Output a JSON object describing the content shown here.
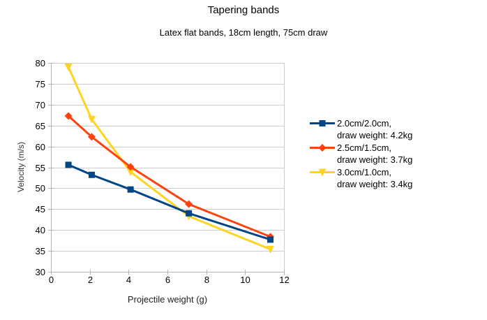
{
  "header": {
    "title": "Tapering bands",
    "subtitle": "Latex flat bands, 18cm length, 75cm draw"
  },
  "chart_data": {
    "type": "line",
    "title": "Tapering bands",
    "subtitle": "Latex flat bands, 18cm length, 75cm draw",
    "xlabel": "Projectile weight (g)",
    "ylabel": "Velocity (m/s)",
    "xlim": [
      0,
      12
    ],
    "ylim": [
      30,
      80
    ],
    "x_ticks": [
      0,
      2,
      4,
      6,
      8,
      10,
      12
    ],
    "y_ticks": [
      30,
      35,
      40,
      45,
      50,
      55,
      60,
      65,
      70,
      75,
      80
    ],
    "grid": "horizontal",
    "legend_position": "right",
    "x": [
      0.9,
      2.1,
      4.1,
      7.1,
      11.3
    ],
    "series": [
      {
        "label_line1": "2.0cm/2.0cm,",
        "label_line2": "draw weight: 4.2kg",
        "color": "#004586",
        "marker": "square",
        "values": [
          55.6,
          53.2,
          49.7,
          44.0,
          37.7
        ]
      },
      {
        "label_line1": "2.5cm/1.5cm,",
        "label_line2": "draw weight: 3.7kg",
        "color": "#FF420E",
        "marker": "diamond",
        "values": [
          67.3,
          62.3,
          55.1,
          46.2,
          38.4
        ]
      },
      {
        "label_line1": "3.0cm/1.0cm,",
        "label_line2": "draw weight: 3.4kg",
        "color": "#FFD320",
        "marker": "triangle-down",
        "values": [
          79.0,
          66.5,
          53.9,
          43.3,
          35.4
        ]
      }
    ],
    "colors": {
      "axis_line": "#b3b3b3",
      "gridline": "#cdcdcd",
      "tick_label": "#000000",
      "background": "#ffffff"
    }
  }
}
